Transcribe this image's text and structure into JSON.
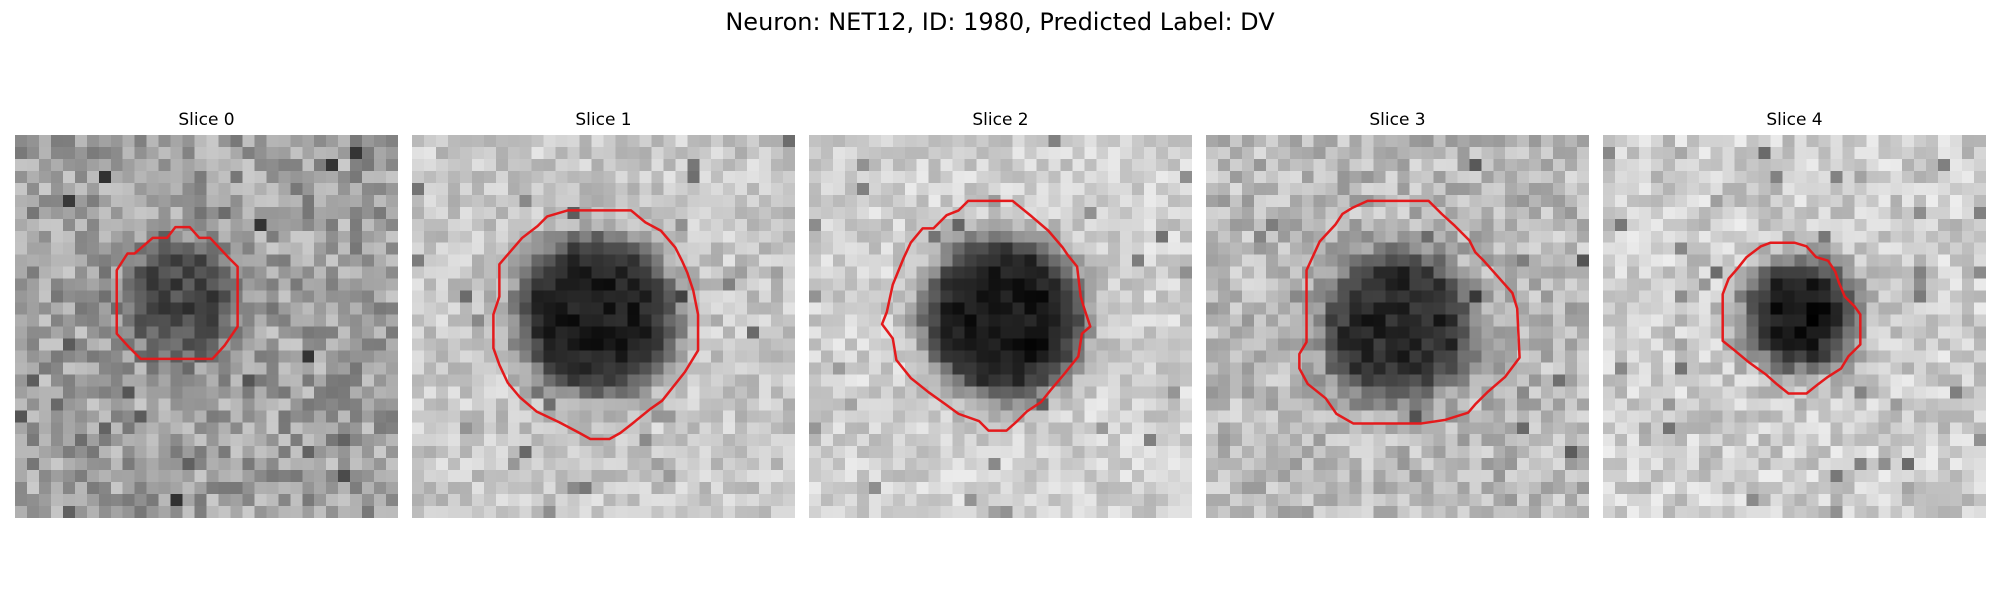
{
  "figure": {
    "title": "Neuron: NET12, ID: 1980, Predicted Label: DV",
    "contour_color": "#e41a1c"
  },
  "slices": [
    {
      "label": "Slice 0"
    },
    {
      "label": "Slice 1"
    },
    {
      "label": "Slice 2"
    },
    {
      "label": "Slice 3"
    },
    {
      "label": "Slice 4"
    }
  ]
}
